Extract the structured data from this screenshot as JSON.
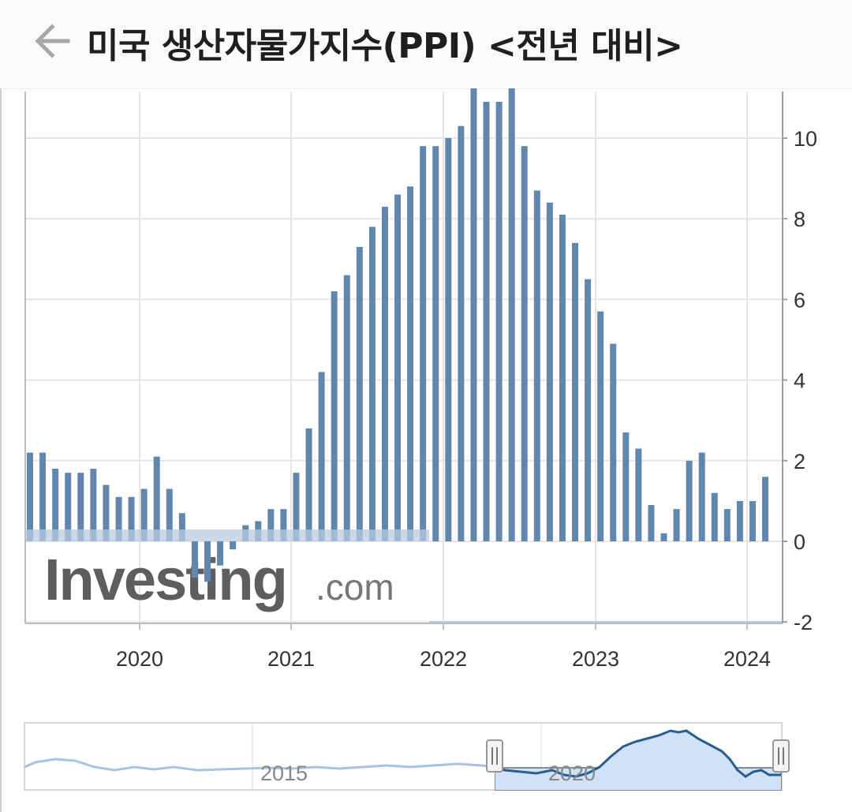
{
  "header": {
    "title": "미국 생산자물가지수(PPI) <전년 대비>",
    "back_icon": "arrow-left-icon"
  },
  "watermark": {
    "brand": "Investing",
    "suffix": ".com"
  },
  "navigator": {
    "labels": [
      "2015",
      "2020"
    ]
  },
  "colors": {
    "bar": "#6087b0",
    "bar_light": "#b9cbe0",
    "grid": "#e6e6e6",
    "nav_line": "#2a5d8a",
    "nav_fill": "#cfe2f8"
  },
  "chart_data": {
    "type": "bar",
    "title": "미국 생산자물가지수(PPI) <전년 대비>",
    "xlabel": "",
    "ylabel": "",
    "ylim": [
      -2,
      11.2
    ],
    "y_ticks": [
      -2,
      0,
      2,
      4,
      6,
      8,
      10
    ],
    "x_ticks": [
      "2020",
      "2021",
      "2022",
      "2023",
      "2024"
    ],
    "grid": true,
    "y_axis_position": "right",
    "categories": [
      "2019-05",
      "2019-06",
      "2019-07",
      "2019-08",
      "2019-09",
      "2019-10",
      "2019-11",
      "2019-12",
      "2020-01",
      "2020-02",
      "2020-03",
      "2020-04",
      "2020-05",
      "2020-06",
      "2020-07",
      "2020-08",
      "2020-09",
      "2020-10",
      "2020-11",
      "2020-12",
      "2021-01",
      "2021-02",
      "2021-03",
      "2021-04",
      "2021-05",
      "2021-06",
      "2021-07",
      "2021-08",
      "2021-09",
      "2021-10",
      "2021-11",
      "2021-12",
      "2022-01",
      "2022-02",
      "2022-03",
      "2022-04",
      "2022-05",
      "2022-06",
      "2022-07",
      "2022-08",
      "2022-09",
      "2022-10",
      "2022-11",
      "2022-12",
      "2023-01",
      "2023-02",
      "2023-03",
      "2023-04",
      "2023-05",
      "2023-06",
      "2023-07",
      "2023-08",
      "2023-09",
      "2023-10",
      "2023-11",
      "2023-12",
      "2024-01",
      "2024-02",
      "2024-03"
    ],
    "values": [
      2.2,
      2.2,
      1.8,
      1.7,
      1.7,
      1.8,
      1.4,
      1.1,
      1.1,
      1.3,
      2.1,
      1.3,
      0.7,
      -0.9,
      -1.0,
      -0.6,
      -0.2,
      0.4,
      0.5,
      0.8,
      0.8,
      1.7,
      2.8,
      4.2,
      6.2,
      6.6,
      7.3,
      7.8,
      8.3,
      8.6,
      8.8,
      9.8,
      9.8,
      10.0,
      10.3,
      11.3,
      10.9,
      10.9,
      11.3,
      9.8,
      8.7,
      8.4,
      8.1,
      7.4,
      6.5,
      5.7,
      4.9,
      2.7,
      2.3,
      0.9,
      0.2,
      0.8,
      2.0,
      2.2,
      1.2,
      0.8,
      1.0,
      1.0,
      1.6
    ]
  }
}
